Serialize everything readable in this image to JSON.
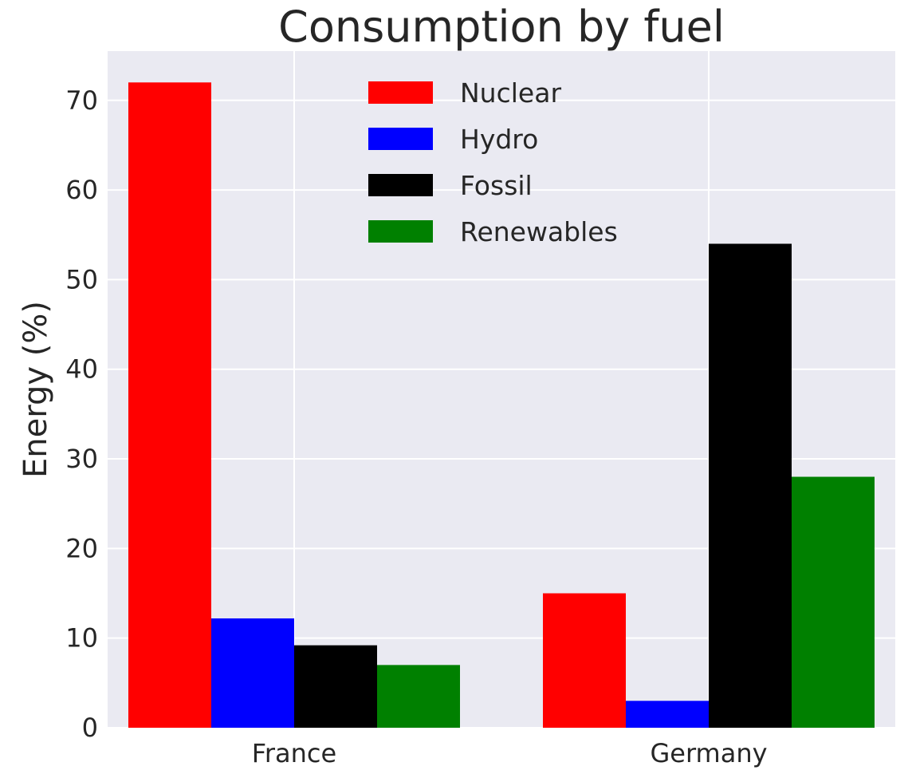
{
  "chart_data": {
    "type": "bar",
    "title": "Consumption by fuel",
    "xlabel": "",
    "ylabel": "Energy (%)",
    "categories": [
      "France",
      "Germany"
    ],
    "series": [
      {
        "name": "Nuclear",
        "color": "#ff0000",
        "values": [
          72,
          15
        ]
      },
      {
        "name": "Hydro",
        "color": "#0000ff",
        "values": [
          12.2,
          3
        ]
      },
      {
        "name": "Fossil",
        "color": "#000000",
        "values": [
          9.2,
          54
        ]
      },
      {
        "name": "Renewables",
        "color": "#008000",
        "values": [
          7,
          28
        ]
      }
    ],
    "ylim": [
      0,
      75.5
    ],
    "yticks": [
      0,
      10,
      20,
      30,
      40,
      50,
      60,
      70
    ],
    "grid": true,
    "legend_position": "top-center",
    "colors": {
      "plot_background": "#eaeaf2",
      "grid": "#ffffff",
      "text": "#262626"
    }
  }
}
